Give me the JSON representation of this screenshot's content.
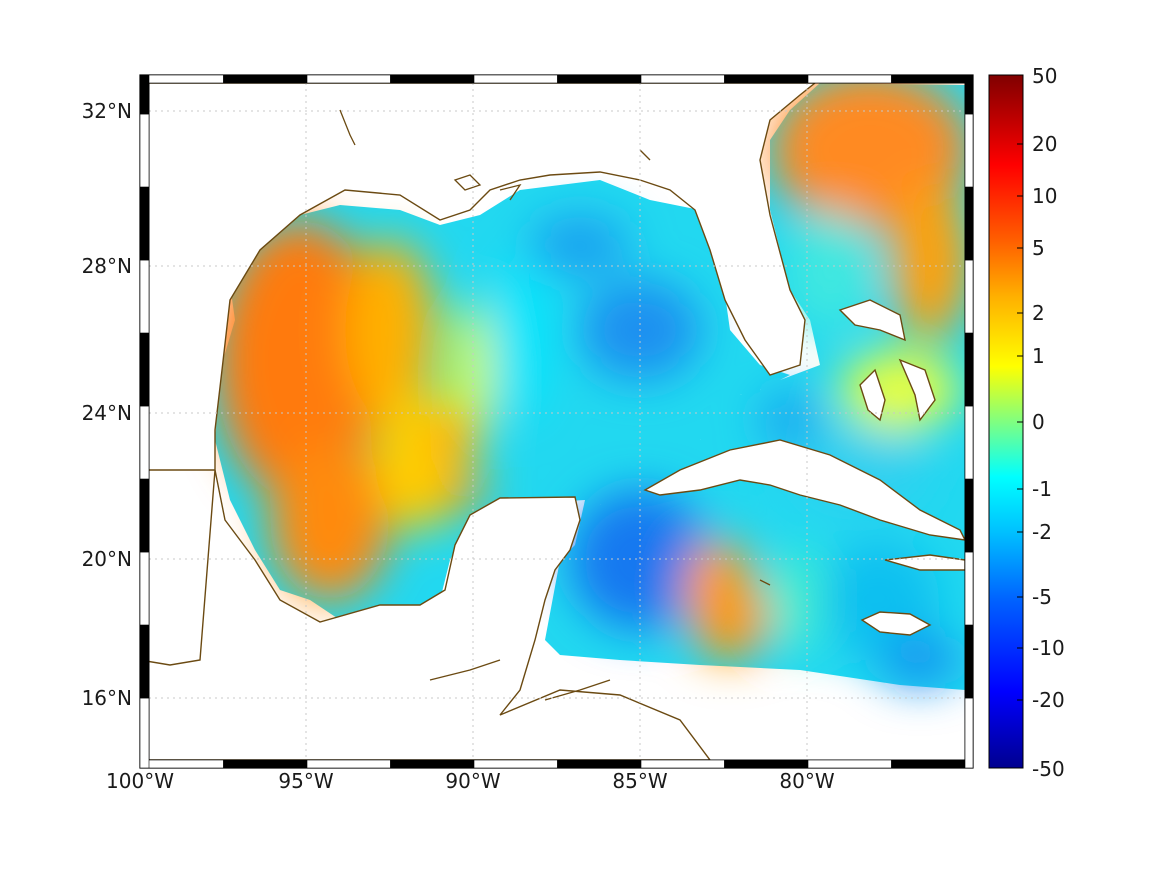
{
  "map": {
    "lon_ticks": [
      "100°W",
      "95°W",
      "90°W",
      "85°W",
      "80°W"
    ],
    "lat_ticks": [
      "32°N",
      "28°N",
      "24°N",
      "20°N",
      "16°N"
    ],
    "lon_range": [
      -100,
      -75
    ],
    "lat_range": [
      14.5,
      33
    ],
    "grid": true
  },
  "colorbar": {
    "tick_labels": [
      "50",
      "20",
      "10",
      "5",
      "2",
      "1",
      "0",
      "-1",
      "-2",
      "-5",
      "-10",
      "-20",
      "-50"
    ],
    "colormap": "jet",
    "colors": [
      "#00008f",
      "#0000ff",
      "#0080ff",
      "#00ffff",
      "#80ff80",
      "#ffff00",
      "#ff8000",
      "#ff0000",
      "#800000"
    ]
  },
  "colors": {
    "coastline": "#6b4a12",
    "grid": "#c8c8c8",
    "frame_dark": "#000000",
    "frame_light": "#ffffff"
  }
}
